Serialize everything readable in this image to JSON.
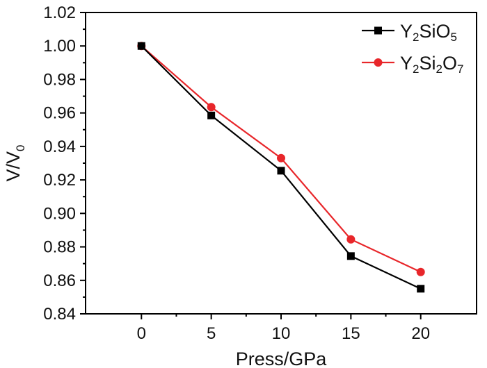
{
  "chart_data": {
    "type": "line",
    "title": "",
    "xlabel": "Press/GPa",
    "ylabel": {
      "main": "V/V",
      "sub": "0"
    },
    "x": [
      0,
      5,
      10,
      15,
      20
    ],
    "x_ticks": [
      "0",
      "5",
      "10",
      "15",
      "20"
    ],
    "xlim": [
      -4,
      24
    ],
    "ylim": [
      0.84,
      1.02
    ],
    "y_ticks": [
      "0.84",
      "0.86",
      "0.88",
      "0.90",
      "0.92",
      "0.94",
      "0.96",
      "0.98",
      "1.00",
      "1.02"
    ],
    "grid": false,
    "legend_position": "top-right",
    "series": [
      {
        "name": "Y2SiO5",
        "name_parts": [
          [
            "Y",
            false
          ],
          [
            "2",
            true
          ],
          [
            "SiO",
            false
          ],
          [
            "5",
            true
          ]
        ],
        "color": "#000000",
        "marker": "square",
        "values": [
          1.0,
          0.9585,
          0.9255,
          0.8745,
          0.855
        ]
      },
      {
        "name": "Y2Si2O7",
        "name_parts": [
          [
            "Y",
            false
          ],
          [
            "2",
            true
          ],
          [
            "Si",
            false
          ],
          [
            "2",
            true
          ],
          [
            "O",
            false
          ],
          [
            "7",
            true
          ]
        ],
        "color": "#e8262a",
        "marker": "circle",
        "values": [
          1.0,
          0.9635,
          0.933,
          0.8845,
          0.865
        ]
      }
    ]
  }
}
